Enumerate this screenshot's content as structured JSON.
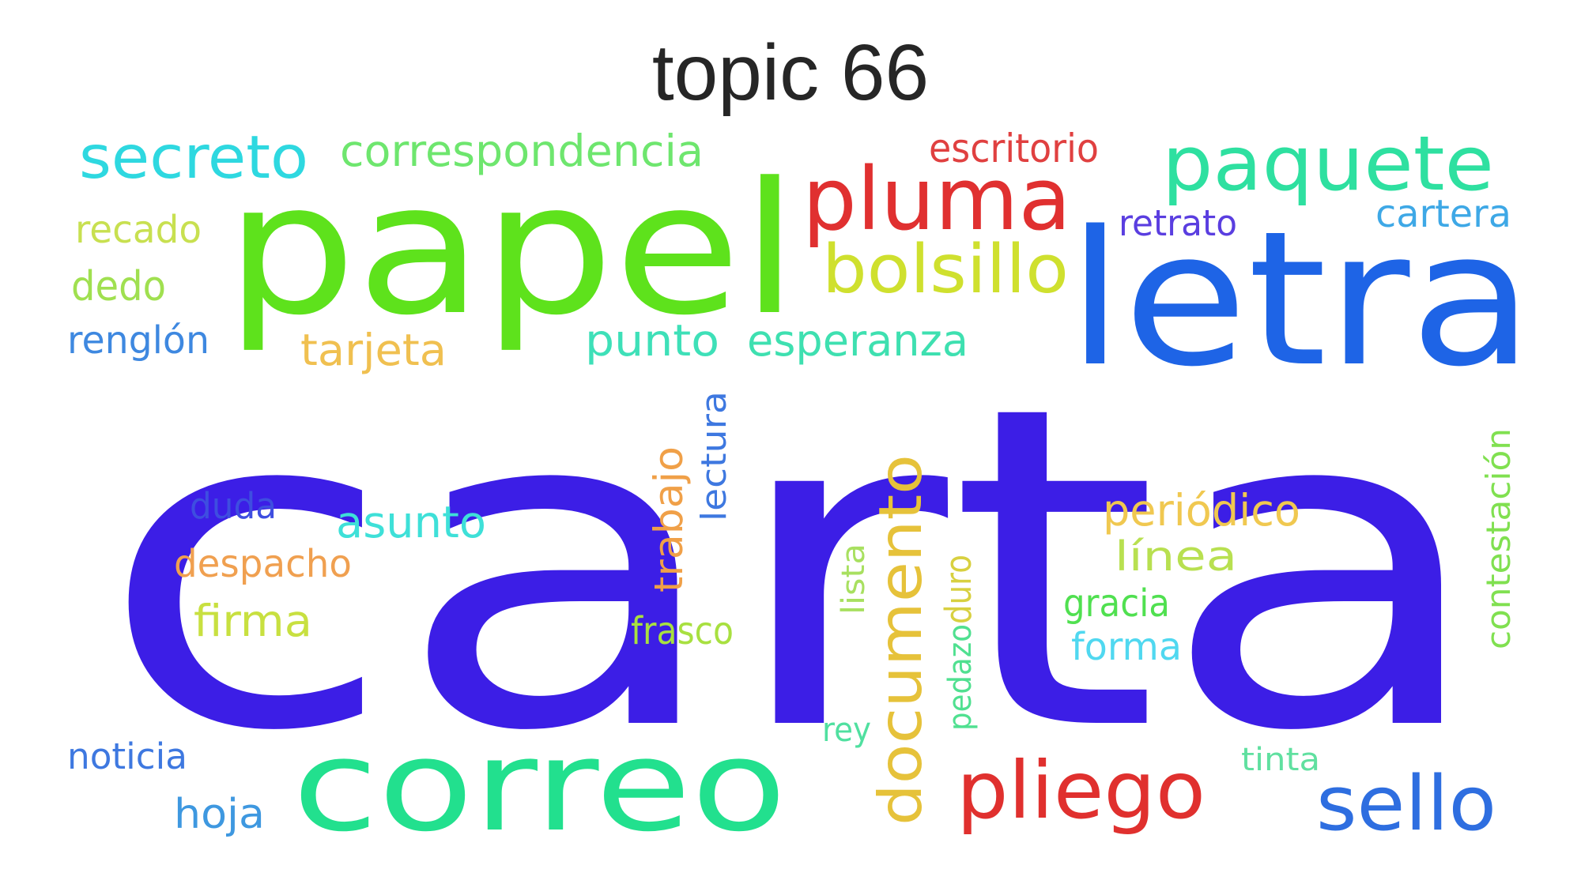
{
  "title": "topic 66",
  "words": [
    {
      "text": "carta",
      "color": "#3c1ee6"
    },
    {
      "text": "papel",
      "color": "#5ee21c"
    },
    {
      "text": "letra",
      "color": "#1e64e6"
    },
    {
      "text": "correo",
      "color": "#22e08e"
    },
    {
      "text": "pluma",
      "color": "#e03030"
    },
    {
      "text": "paquete",
      "color": "#2ee0a0"
    },
    {
      "text": "secreto",
      "color": "#2ed8e0"
    },
    {
      "text": "bolsillo",
      "color": "#cfe02e"
    },
    {
      "text": "pliego",
      "color": "#e0302e"
    },
    {
      "text": "sello",
      "color": "#2e6ee0"
    },
    {
      "text": "documento",
      "color": "#e6c23a"
    },
    {
      "text": "correspondencia",
      "color": "#6ee66e"
    },
    {
      "text": "escritorio",
      "color": "#e04040"
    },
    {
      "text": "retrato",
      "color": "#5a3ee0"
    },
    {
      "text": "cartera",
      "color": "#3ea8e6"
    },
    {
      "text": "recado",
      "color": "#c8e050"
    },
    {
      "text": "dedo",
      "color": "#a0e050"
    },
    {
      "text": "renglón",
      "color": "#3e88e0"
    },
    {
      "text": "tarjeta",
      "color": "#f0c050"
    },
    {
      "text": "punto",
      "color": "#3ee0b8"
    },
    {
      "text": "esperanza",
      "color": "#3ee0b0"
    },
    {
      "text": "lectura",
      "color": "#3e78e0"
    },
    {
      "text": "trabajo",
      "color": "#f0a048"
    },
    {
      "text": "duda",
      "color": "#3e4ee0"
    },
    {
      "text": "asunto",
      "color": "#3ee0d8"
    },
    {
      "text": "despacho",
      "color": "#f0a050"
    },
    {
      "text": "firma",
      "color": "#c8e040"
    },
    {
      "text": "frasco",
      "color": "#a8e040"
    },
    {
      "text": "lista",
      "color": "#a8e060"
    },
    {
      "text": "pedazo",
      "color": "#50e090"
    },
    {
      "text": "duro",
      "color": "#d8d040"
    },
    {
      "text": "periódico",
      "color": "#f0c850"
    },
    {
      "text": "línea",
      "color": "#b8e050"
    },
    {
      "text": "gracia",
      "color": "#50e050"
    },
    {
      "text": "forma",
      "color": "#50d8f0"
    },
    {
      "text": "contestación",
      "color": "#80e050"
    },
    {
      "text": "rey",
      "color": "#50e0a0"
    },
    {
      "text": "tinta",
      "color": "#60e0a0"
    },
    {
      "text": "noticia",
      "color": "#3e78e0"
    },
    {
      "text": "hoja",
      "color": "#3e98e0"
    }
  ]
}
